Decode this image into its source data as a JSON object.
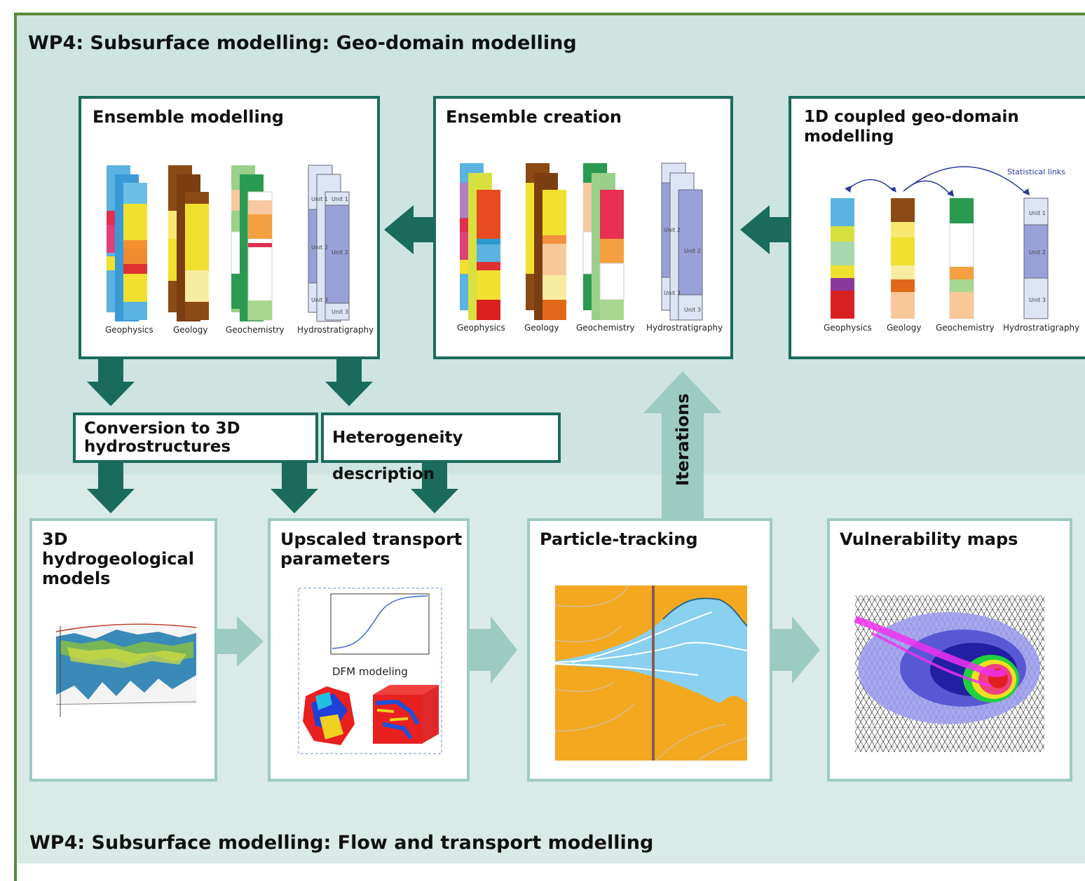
{
  "top_section_title": "WP4: Subsurface modelling: Geo-domain modelling",
  "bottom_section_title": "WP4: Subsurface modelling: Flow and transport modelling",
  "panels": {
    "ensemble_modelling": "Ensemble modelling",
    "ensemble_creation": "Ensemble creation",
    "coupled_1d": "1D coupled geo-domain modelling",
    "hydro_models": "3D hydrogeological models",
    "upscaled": "Upscaled transport parameters",
    "particle": "Particle-tracking",
    "vulnerability": "Vulnerability maps"
  },
  "boxes": {
    "conversion": "Conversion to 3D hydrostructures",
    "heterogeneity": "Heterogeneity description"
  },
  "iterations_label": "Iterations",
  "column_labels": [
    "Geophysics",
    "Geology",
    "Geochemistry",
    "Hydrostratigraphy"
  ],
  "unit_labels": [
    "Unit 1",
    "Unit 2",
    "Unit 3"
  ],
  "statistical_links": "Statistical links",
  "dfm_label": "DFM modeling",
  "colors": {
    "dark_teal": "#1a6b5c",
    "light_teal": "#9ccbc1",
    "border_green": "#5a8c35",
    "top_bg": "#cde4e1",
    "bottom_bg": "#daeae7"
  }
}
